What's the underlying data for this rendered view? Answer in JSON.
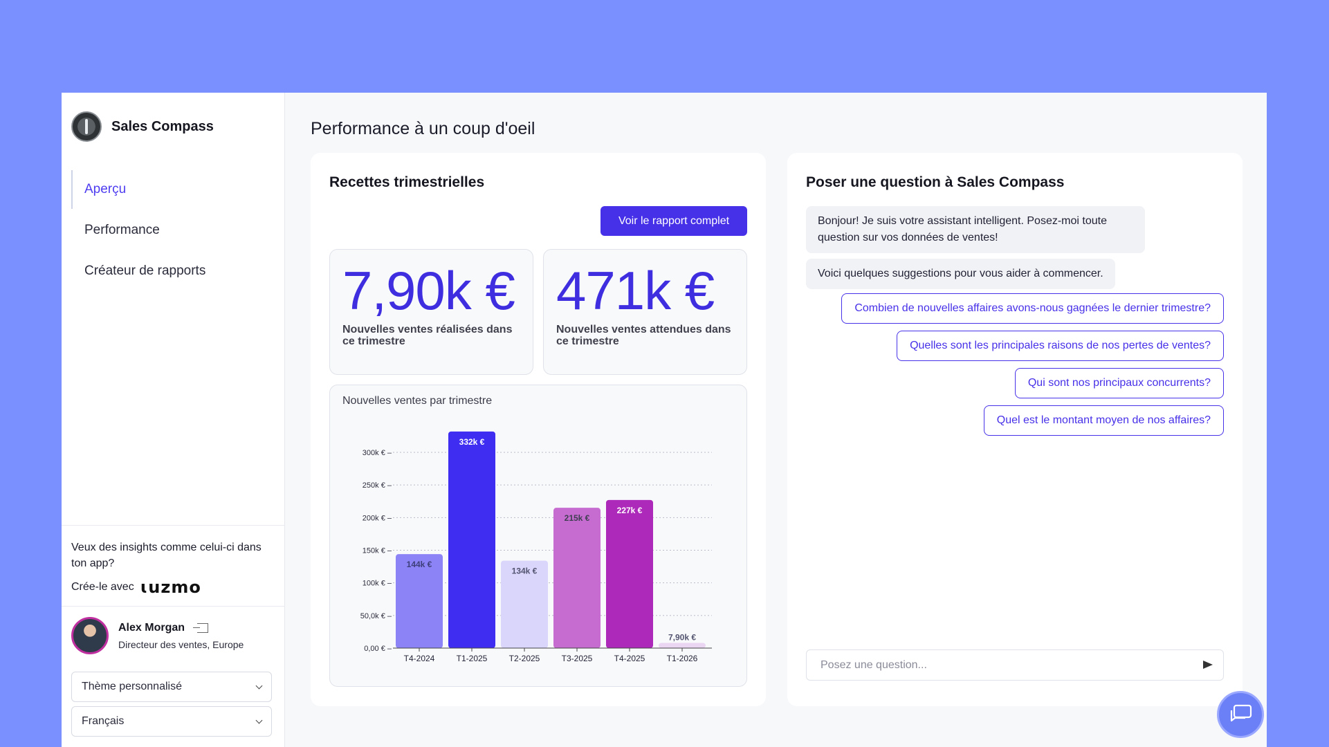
{
  "brand": {
    "name": "Sales Compass"
  },
  "nav": {
    "items": [
      {
        "label": "Aperçu",
        "active": true
      },
      {
        "label": "Performance",
        "active": false
      },
      {
        "label": "Créateur de rapports",
        "active": false
      }
    ]
  },
  "promo": {
    "text": "Veux des insights comme celui-ci dans ton app?",
    "cta": "Crée-le avec",
    "logo_text": "LUZMO"
  },
  "user": {
    "name": "Alex Morgan",
    "role": "Directeur des ventes, Europe"
  },
  "selects": {
    "theme": "Thème personnalisé",
    "language": "Français"
  },
  "page": {
    "title": "Performance à un coup d'oeil"
  },
  "revenue": {
    "title": "Recettes trimestrielles",
    "report_button": "Voir le rapport complet",
    "kpi_realized": {
      "value": "7,90k €",
      "label": "Nouvelles ventes réalisées dans ce trimestre"
    },
    "kpi_expected": {
      "value": "471k €",
      "label": "Nouvelles ventes attendues dans ce trimestre"
    }
  },
  "chart_data": {
    "type": "bar",
    "title": "Nouvelles ventes par trimestre",
    "categories": [
      "T4-2024",
      "T1-2025",
      "T2-2025",
      "T3-2025",
      "T4-2025",
      "T1-2026"
    ],
    "values": [
      144000,
      332000,
      134000,
      215000,
      227000,
      7900
    ],
    "data_labels": [
      "144k €",
      "332k €",
      "134k €",
      "215k €",
      "227k €",
      "7,90k €"
    ],
    "bar_colors": [
      "#8c83f6",
      "#3f2ef2",
      "#d9d5fb",
      "#c66bd0",
      "#ad29b9",
      "#ead6f3"
    ],
    "label_colors": [
      "#3d3f7a",
      "#ffffff",
      "#545570",
      "#3f3f52",
      "#ffffff",
      "#545570"
    ],
    "yticks": [
      0,
      50000,
      100000,
      150000,
      200000,
      250000,
      300000
    ],
    "ytick_labels": [
      "0,00 € –",
      "50,0k € –",
      "100k € –",
      "150k € –",
      "200k € –",
      "250k € –",
      "300k € –"
    ],
    "ylim": [
      0,
      300000
    ],
    "grid": true
  },
  "chat": {
    "title": "Poser une question à Sales Compass",
    "greeting": "Bonjour! Je suis votre assistant intelligent. Posez-moi toute question sur vos données de ventes!",
    "intro": "Voici quelques suggestions pour vous aider à commencer.",
    "suggestions": [
      "Combien de nouvelles affaires avons-nous gagnées le dernier trimestre?",
      "Quelles sont les principales raisons de nos pertes de ventes?",
      "Qui sont nos principaux concurrents?",
      "Quel est le montant moyen de nos affaires?"
    ],
    "input_placeholder": "Posez une question..."
  },
  "colors": {
    "accent": "#4630e8",
    "background": "#7a90ff"
  }
}
